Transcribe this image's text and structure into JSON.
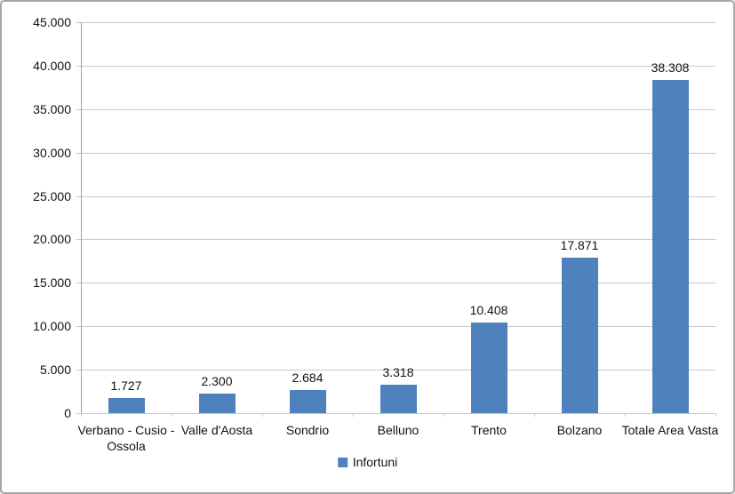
{
  "chart_data": {
    "type": "bar",
    "title": "",
    "categories": [
      "Verbano - Cusio - Ossola",
      "Valle d'Aosta",
      "Sondrio",
      "Belluno",
      "Trento",
      "Bolzano",
      "Totale Area Vasta"
    ],
    "values": [
      1727,
      2300,
      2684,
      3318,
      10408,
      17871,
      38308
    ],
    "value_labels": [
      "1.727",
      "2.300",
      "2.684",
      "3.318",
      "10.408",
      "17.871",
      "38.308"
    ],
    "series": [
      {
        "name": "Infortuni",
        "values": [
          1727,
          2300,
          2684,
          3318,
          10408,
          17871,
          38308
        ]
      }
    ],
    "xlabel": "",
    "ylabel": "",
    "ylim": [
      0,
      45000
    ],
    "ytick_step": 5000,
    "ytick_labels": [
      "0",
      "5.000",
      "10.000",
      "15.000",
      "20.000",
      "25.000",
      "30.000",
      "35.000",
      "40.000",
      "45.000"
    ],
    "grid": true,
    "legend_position": "bottom"
  },
  "legend": {
    "items": [
      {
        "label": "Infortuni",
        "color": "#4F81BD"
      }
    ]
  },
  "colors": {
    "bar": "#4F81BD",
    "gridline": "#c9c9c9",
    "axis_line": "#9f9f9f",
    "chart_border": "#a8a8a8",
    "text": "#111111",
    "background": "#ffffff"
  }
}
